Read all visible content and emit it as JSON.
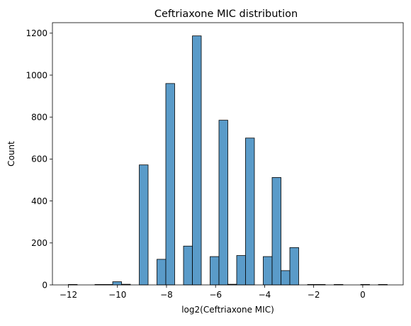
{
  "chart_data": {
    "type": "bar",
    "title": "Ceftriaxone MIC distribution",
    "xlabel": "log2(Ceftriaxone MIC)",
    "ylabel": "Count",
    "xlim": [
      -12.65,
      1.65
    ],
    "ylim": [
      0,
      1250
    ],
    "xticks": [
      -12,
      -10,
      -8,
      -6,
      -4,
      -2,
      0
    ],
    "yticks": [
      0,
      200,
      400,
      600,
      800,
      1000,
      1200
    ],
    "bin_width": 0.3611,
    "bins": [
      {
        "x0": -12.0,
        "count": 2
      },
      {
        "x0": -10.917,
        "count": 2
      },
      {
        "x0": -10.556,
        "count": 2
      },
      {
        "x0": -10.194,
        "count": 15
      },
      {
        "x0": -9.833,
        "count": 3
      },
      {
        "x0": -9.111,
        "count": 572
      },
      {
        "x0": -8.389,
        "count": 122
      },
      {
        "x0": -8.028,
        "count": 960
      },
      {
        "x0": -7.306,
        "count": 185
      },
      {
        "x0": -6.944,
        "count": 1187
      },
      {
        "x0": -6.222,
        "count": 135
      },
      {
        "x0": -5.861,
        "count": 785
      },
      {
        "x0": -5.5,
        "count": 3
      },
      {
        "x0": -5.139,
        "count": 140
      },
      {
        "x0": -4.778,
        "count": 700
      },
      {
        "x0": -4.056,
        "count": 135
      },
      {
        "x0": -3.694,
        "count": 512
      },
      {
        "x0": -3.333,
        "count": 68
      },
      {
        "x0": -2.972,
        "count": 178
      },
      {
        "x0": -2.25,
        "count": 2
      },
      {
        "x0": -1.889,
        "count": 2
      },
      {
        "x0": -1.167,
        "count": 2
      },
      {
        "x0": -0.083,
        "count": 2
      },
      {
        "x0": 0.639,
        "count": 2
      }
    ],
    "bar_color": "#5a9bc9",
    "edge_color": "#000000",
    "grid": false,
    "legend": "none"
  }
}
